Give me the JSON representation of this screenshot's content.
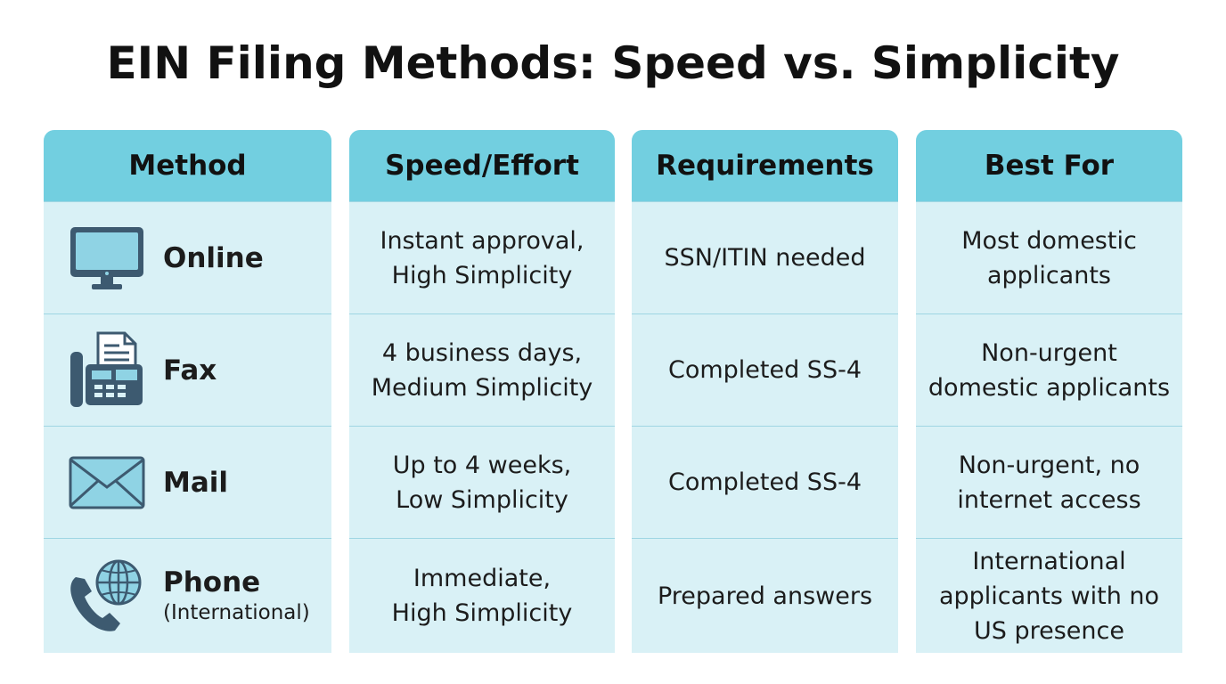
{
  "title": "EIN Filing Methods: Speed vs. Simplicity",
  "headers": [
    "Method",
    "Speed/Effort",
    "Requirements",
    "Best For"
  ],
  "rows": [
    {
      "icon": "monitor-icon",
      "method": "Online",
      "method_note": "",
      "speed_lines": [
        "Instant approval,",
        "High Simplicity"
      ],
      "requirement_lines": [
        "SSN/ITIN needed"
      ],
      "best_for_lines": [
        "Most domestic",
        "applicants"
      ]
    },
    {
      "icon": "fax-machine-icon",
      "method": "Fax",
      "method_note": "",
      "speed_lines": [
        "4 business days,",
        "Medium Simplicity"
      ],
      "requirement_lines": [
        "Completed SS-4"
      ],
      "best_for_lines": [
        "Non-urgent",
        "domestic applicants"
      ]
    },
    {
      "icon": "envelope-icon",
      "method": "Mail",
      "method_note": "",
      "speed_lines": [
        "Up to 4 weeks,",
        "Low Simplicity"
      ],
      "requirement_lines": [
        "Completed SS-4"
      ],
      "best_for_lines": [
        "Non-urgent, no",
        "internet access"
      ]
    },
    {
      "icon": "phone-globe-icon",
      "method": "Phone",
      "method_note": "(International)",
      "speed_lines": [
        "Immediate,",
        "High Simplicity"
      ],
      "requirement_lines": [
        "Prepared answers"
      ],
      "best_for_lines": [
        "International",
        "applicants with no",
        "US presence"
      ]
    }
  ],
  "colors": {
    "header_fill": "#72cfe0",
    "cell_fill": "#d9f1f6",
    "divider": "#9fd6e3",
    "icon": "#3d5a70",
    "icon_fill": "#8fd3e4"
  }
}
